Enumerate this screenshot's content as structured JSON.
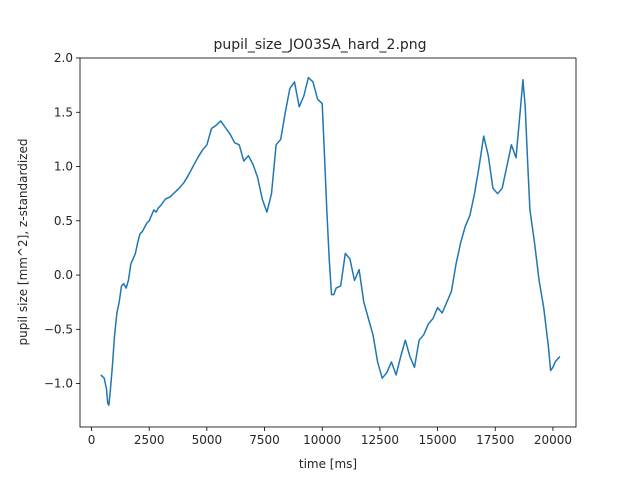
{
  "chart_data": {
    "type": "line",
    "title": "pupil_size_JO03SA_hard_2.png",
    "xlabel": "time [ms]",
    "ylabel": "pupil size [mm^2], z-standardized",
    "xlim": [
      -500,
      21000
    ],
    "ylim": [
      -1.4,
      2.0
    ],
    "xticks": [
      0,
      2500,
      5000,
      7500,
      10000,
      12500,
      15000,
      17500,
      20000
    ],
    "yticks": [
      -1.0,
      -0.5,
      0.0,
      0.5,
      1.0,
      1.5,
      2.0
    ],
    "ytick_labels": [
      "−1.0",
      "−0.5",
      "0.0",
      "0.5",
      "1.0",
      "1.5",
      "2.0"
    ],
    "grid": false,
    "series": [
      {
        "color": "#1f77b4",
        "x": [
          400,
          550,
          650,
          700,
          750,
          800,
          900,
          1000,
          1100,
          1200,
          1300,
          1400,
          1500,
          1600,
          1700,
          1800,
          1900,
          2000,
          2100,
          2200,
          2300,
          2400,
          2500,
          2600,
          2700,
          2800,
          2900,
          3000,
          3200,
          3400,
          3600,
          3800,
          4000,
          4200,
          4400,
          4600,
          4800,
          5000,
          5200,
          5400,
          5600,
          5800,
          6000,
          6200,
          6400,
          6600,
          6800,
          7000,
          7200,
          7400,
          7600,
          7800,
          8000,
          8200,
          8400,
          8600,
          8800,
          9000,
          9200,
          9400,
          9600,
          9800,
          10000,
          10100,
          10200,
          10300,
          10400,
          10500,
          10600,
          10800,
          11000,
          11200,
          11400,
          11600,
          11800,
          12000,
          12200,
          12400,
          12600,
          12800,
          13000,
          13200,
          13400,
          13600,
          13800,
          14000,
          14200,
          14400,
          14600,
          14800,
          15000,
          15200,
          15400,
          15600,
          15800,
          16000,
          16200,
          16400,
          16600,
          16800,
          17000,
          17200,
          17400,
          17600,
          17800,
          18000,
          18200,
          18400,
          18600,
          18700,
          18800,
          18900,
          19000,
          19200,
          19400,
          19600,
          19800,
          19900,
          20000,
          20100,
          20300
        ],
        "y": [
          -0.92,
          -0.95,
          -1.05,
          -1.18,
          -1.2,
          -1.1,
          -0.85,
          -0.55,
          -0.35,
          -0.25,
          -0.1,
          -0.08,
          -0.12,
          -0.05,
          0.1,
          0.15,
          0.2,
          0.3,
          0.38,
          0.4,
          0.44,
          0.48,
          0.5,
          0.55,
          0.6,
          0.58,
          0.62,
          0.64,
          0.7,
          0.72,
          0.76,
          0.8,
          0.85,
          0.92,
          1.0,
          1.08,
          1.15,
          1.2,
          1.35,
          1.38,
          1.42,
          1.36,
          1.3,
          1.22,
          1.2,
          1.05,
          1.1,
          1.02,
          0.9,
          0.7,
          0.58,
          0.75,
          1.2,
          1.25,
          1.5,
          1.72,
          1.78,
          1.55,
          1.65,
          1.82,
          1.78,
          1.62,
          1.58,
          1.1,
          0.6,
          0.15,
          -0.18,
          -0.18,
          -0.12,
          -0.1,
          0.2,
          0.15,
          -0.05,
          0.05,
          -0.25,
          -0.4,
          -0.55,
          -0.8,
          -0.95,
          -0.9,
          -0.8,
          -0.92,
          -0.75,
          -0.6,
          -0.75,
          -0.85,
          -0.6,
          -0.55,
          -0.45,
          -0.4,
          -0.3,
          -0.35,
          -0.25,
          -0.15,
          0.1,
          0.3,
          0.45,
          0.55,
          0.75,
          1.0,
          1.28,
          1.1,
          0.8,
          0.75,
          0.8,
          1.0,
          1.2,
          1.08,
          1.55,
          1.8,
          1.55,
          1.05,
          0.6,
          0.3,
          -0.05,
          -0.3,
          -0.65,
          -0.88,
          -0.85,
          -0.8,
          -0.75
        ]
      }
    ]
  }
}
